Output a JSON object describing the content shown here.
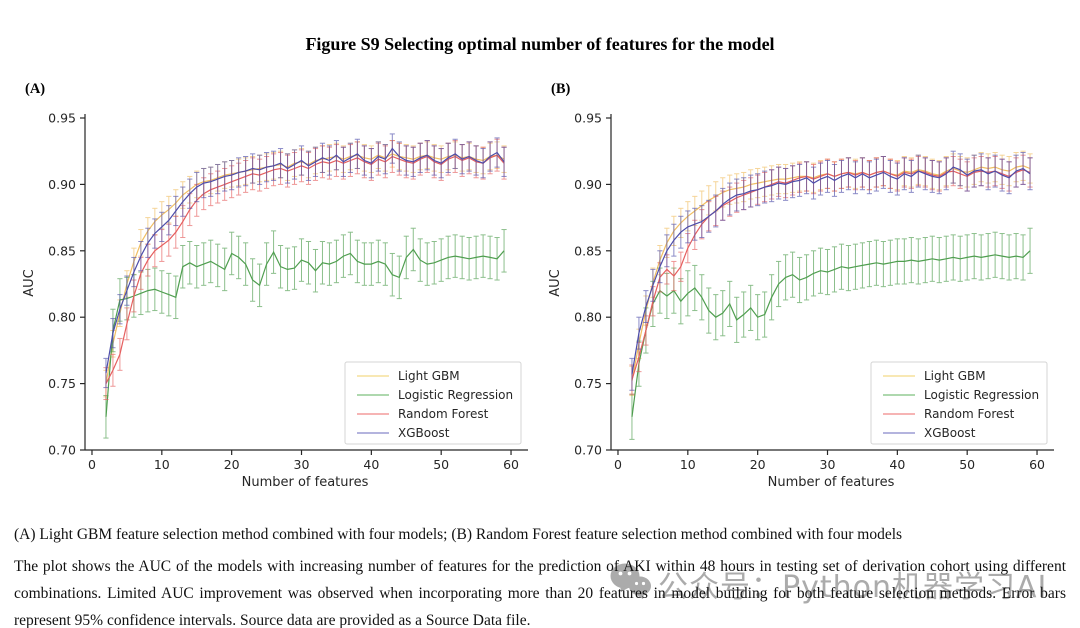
{
  "title": "Figure S9 Selecting optimal number of features for the model",
  "watermark": {
    "text": "公众号：Python机器学习AI",
    "icon": "wechat-icon",
    "color": "#ababab"
  },
  "caption": {
    "line1": "(A) Light GBM feature selection method combined with four models; (B) Random Forest feature selection method combined with four models",
    "body": "The plot shows the AUC of the models with increasing number of features for the prediction of AKI within 48 hours in testing set of derivation cohort using different combinations. Limited AUC improvement was observed when incorporating more than 20 features in model building for both feature selection methods. Error bars represent 95% confidence intervals. Source data are provided as a Source Data file."
  },
  "chart_data": [
    {
      "type": "line",
      "panel_label": "(A)",
      "xlabel": "Number of features",
      "ylabel": "AUC",
      "xlim": [
        -1,
        62
      ],
      "ylim": [
        0.7,
        0.95
      ],
      "xticks": [
        0,
        10,
        20,
        30,
        40,
        50,
        60
      ],
      "yticks": [
        0.7,
        0.75,
        0.8,
        0.85,
        0.9,
        0.95
      ],
      "grid": false,
      "legend_position": "lower right",
      "error_bars": "95% confidence intervals",
      "x": [
        2,
        3,
        4,
        5,
        6,
        7,
        8,
        9,
        10,
        11,
        12,
        13,
        14,
        15,
        16,
        17,
        18,
        19,
        20,
        21,
        22,
        23,
        24,
        25,
        26,
        27,
        28,
        29,
        30,
        31,
        32,
        33,
        34,
        35,
        36,
        37,
        38,
        39,
        40,
        41,
        42,
        43,
        44,
        45,
        46,
        47,
        48,
        49,
        50,
        51,
        52,
        53,
        54,
        55,
        56,
        57,
        58,
        59
      ],
      "series": [
        {
          "name": "Light GBM",
          "color": "#f0be62",
          "legend_color": "#f5e09c",
          "err": 0.01,
          "values": [
            0.75,
            0.78,
            0.803,
            0.825,
            0.842,
            0.856,
            0.865,
            0.872,
            0.877,
            0.881,
            0.886,
            0.892,
            0.896,
            0.9,
            0.902,
            0.903,
            0.905,
            0.907,
            0.908,
            0.909,
            0.91,
            0.911,
            0.912,
            0.913,
            0.914,
            0.915,
            0.913,
            0.916,
            0.917,
            0.915,
            0.918,
            0.919,
            0.92,
            0.921,
            0.919,
            0.921,
            0.922,
            0.92,
            0.919,
            0.922,
            0.92,
            0.923,
            0.921,
            0.92,
            0.919,
            0.921,
            0.922,
            0.92,
            0.919,
            0.921,
            0.922,
            0.92,
            0.921,
            0.919,
            0.918,
            0.921,
            0.922,
            0.919
          ]
        },
        {
          "name": "Logistic Regression",
          "color": "#4f9e4f",
          "legend_color": "#94cc94",
          "err": 0.016,
          "values": [
            0.725,
            0.79,
            0.813,
            0.814,
            0.816,
            0.818,
            0.82,
            0.821,
            0.819,
            0.817,
            0.815,
            0.838,
            0.841,
            0.838,
            0.84,
            0.842,
            0.839,
            0.836,
            0.848,
            0.845,
            0.84,
            0.828,
            0.824,
            0.84,
            0.849,
            0.838,
            0.836,
            0.837,
            0.843,
            0.841,
            0.835,
            0.841,
            0.84,
            0.842,
            0.846,
            0.848,
            0.842,
            0.84,
            0.84,
            0.842,
            0.84,
            0.832,
            0.83,
            0.845,
            0.851,
            0.843,
            0.84,
            0.841,
            0.843,
            0.845,
            0.846,
            0.845,
            0.844,
            0.845,
            0.846,
            0.845,
            0.844,
            0.85
          ]
        },
        {
          "name": "Random Forest",
          "color": "#e55f5f",
          "legend_color": "#f49c9c",
          "err": 0.012,
          "values": [
            0.75,
            0.76,
            0.772,
            0.795,
            0.816,
            0.833,
            0.843,
            0.85,
            0.854,
            0.858,
            0.864,
            0.872,
            0.881,
            0.888,
            0.893,
            0.896,
            0.898,
            0.9,
            0.902,
            0.904,
            0.906,
            0.908,
            0.907,
            0.909,
            0.911,
            0.912,
            0.91,
            0.912,
            0.914,
            0.912,
            0.915,
            0.917,
            0.916,
            0.918,
            0.916,
            0.918,
            0.92,
            0.917,
            0.915,
            0.919,
            0.917,
            0.921,
            0.919,
            0.917,
            0.916,
            0.919,
            0.921,
            0.917,
            0.915,
            0.919,
            0.921,
            0.918,
            0.92,
            0.917,
            0.916,
            0.92,
            0.922,
            0.916
          ]
        },
        {
          "name": "XGBoost",
          "color": "#4d4daa",
          "legend_color": "#9c9cd4",
          "err": 0.011,
          "values": [
            0.758,
            0.788,
            0.806,
            0.82,
            0.834,
            0.846,
            0.856,
            0.863,
            0.868,
            0.873,
            0.88,
            0.887,
            0.893,
            0.898,
            0.901,
            0.902,
            0.904,
            0.906,
            0.907,
            0.909,
            0.91,
            0.912,
            0.911,
            0.913,
            0.914,
            0.916,
            0.912,
            0.915,
            0.918,
            0.914,
            0.917,
            0.92,
            0.918,
            0.922,
            0.917,
            0.92,
            0.923,
            0.918,
            0.916,
            0.921,
            0.919,
            0.927,
            0.921,
            0.918,
            0.917,
            0.92,
            0.922,
            0.918,
            0.916,
            0.92,
            0.923,
            0.919,
            0.921,
            0.918,
            0.916,
            0.921,
            0.924,
            0.917
          ]
        }
      ]
    },
    {
      "type": "line",
      "panel_label": "(B)",
      "xlabel": "Number of features",
      "ylabel": "AUC",
      "xlim": [
        -1,
        62
      ],
      "ylim": [
        0.7,
        0.95
      ],
      "xticks": [
        0,
        10,
        20,
        30,
        40,
        50,
        60
      ],
      "yticks": [
        0.7,
        0.75,
        0.8,
        0.85,
        0.9,
        0.95
      ],
      "grid": false,
      "legend_position": "lower right",
      "error_bars": "95% confidence intervals",
      "x": [
        2,
        3,
        4,
        5,
        6,
        7,
        8,
        9,
        10,
        11,
        12,
        13,
        14,
        15,
        16,
        17,
        18,
        19,
        20,
        21,
        22,
        23,
        24,
        25,
        26,
        27,
        28,
        29,
        30,
        31,
        32,
        33,
        34,
        35,
        36,
        37,
        38,
        39,
        40,
        41,
        42,
        43,
        44,
        45,
        46,
        47,
        48,
        49,
        50,
        51,
        52,
        53,
        54,
        55,
        56,
        57,
        58,
        59
      ],
      "series": [
        {
          "name": "Light GBM",
          "color": "#f0be62",
          "legend_color": "#f5e09c",
          "err": 0.011,
          "values": [
            0.752,
            0.78,
            0.805,
            0.826,
            0.843,
            0.856,
            0.865,
            0.871,
            0.876,
            0.88,
            0.884,
            0.888,
            0.891,
            0.894,
            0.896,
            0.897,
            0.898,
            0.9,
            0.901,
            0.902,
            0.903,
            0.904,
            0.904,
            0.905,
            0.906,
            0.906,
            0.905,
            0.907,
            0.908,
            0.906,
            0.908,
            0.909,
            0.908,
            0.909,
            0.907,
            0.909,
            0.91,
            0.908,
            0.907,
            0.91,
            0.909,
            0.911,
            0.91,
            0.908,
            0.907,
            0.91,
            0.912,
            0.91,
            0.909,
            0.911,
            0.913,
            0.912,
            0.913,
            0.911,
            0.91,
            0.913,
            0.914,
            0.912
          ]
        },
        {
          "name": "Logistic Regression",
          "color": "#4f9e4f",
          "legend_color": "#94cc94",
          "err": 0.017,
          "values": [
            0.725,
            0.765,
            0.79,
            0.81,
            0.82,
            0.816,
            0.82,
            0.812,
            0.818,
            0.822,
            0.815,
            0.805,
            0.8,
            0.803,
            0.81,
            0.798,
            0.802,
            0.807,
            0.8,
            0.802,
            0.815,
            0.825,
            0.83,
            0.832,
            0.828,
            0.83,
            0.833,
            0.835,
            0.834,
            0.836,
            0.838,
            0.837,
            0.838,
            0.839,
            0.84,
            0.841,
            0.84,
            0.841,
            0.842,
            0.842,
            0.843,
            0.842,
            0.843,
            0.844,
            0.843,
            0.844,
            0.845,
            0.844,
            0.845,
            0.846,
            0.845,
            0.846,
            0.847,
            0.846,
            0.845,
            0.846,
            0.845,
            0.85
          ]
        },
        {
          "name": "Random Forest",
          "color": "#e55f5f",
          "legend_color": "#f49c9c",
          "err": 0.011,
          "values": [
            0.753,
            0.77,
            0.79,
            0.812,
            0.83,
            0.836,
            0.831,
            0.838,
            0.852,
            0.862,
            0.87,
            0.876,
            0.88,
            0.884,
            0.887,
            0.89,
            0.892,
            0.894,
            0.896,
            0.898,
            0.9,
            0.902,
            0.901,
            0.903,
            0.905,
            0.906,
            0.904,
            0.906,
            0.908,
            0.906,
            0.908,
            0.909,
            0.907,
            0.909,
            0.907,
            0.909,
            0.91,
            0.908,
            0.906,
            0.909,
            0.908,
            0.91,
            0.909,
            0.907,
            0.906,
            0.909,
            0.91,
            0.908,
            0.906,
            0.909,
            0.91,
            0.909,
            0.91,
            0.908,
            0.906,
            0.909,
            0.911,
            0.909
          ]
        },
        {
          "name": "XGBoost",
          "color": "#4d4daa",
          "legend_color": "#9c9cd4",
          "err": 0.012,
          "values": [
            0.757,
            0.788,
            0.808,
            0.824,
            0.838,
            0.85,
            0.858,
            0.864,
            0.868,
            0.87,
            0.872,
            0.876,
            0.88,
            0.885,
            0.889,
            0.892,
            0.893,
            0.895,
            0.896,
            0.898,
            0.899,
            0.901,
            0.9,
            0.902,
            0.903,
            0.905,
            0.901,
            0.904,
            0.906,
            0.903,
            0.906,
            0.908,
            0.905,
            0.908,
            0.905,
            0.907,
            0.909,
            0.906,
            0.904,
            0.908,
            0.906,
            0.91,
            0.908,
            0.906,
            0.905,
            0.908,
            0.913,
            0.911,
            0.907,
            0.91,
            0.911,
            0.908,
            0.91,
            0.907,
            0.905,
            0.91,
            0.912,
            0.908
          ]
        }
      ]
    }
  ]
}
